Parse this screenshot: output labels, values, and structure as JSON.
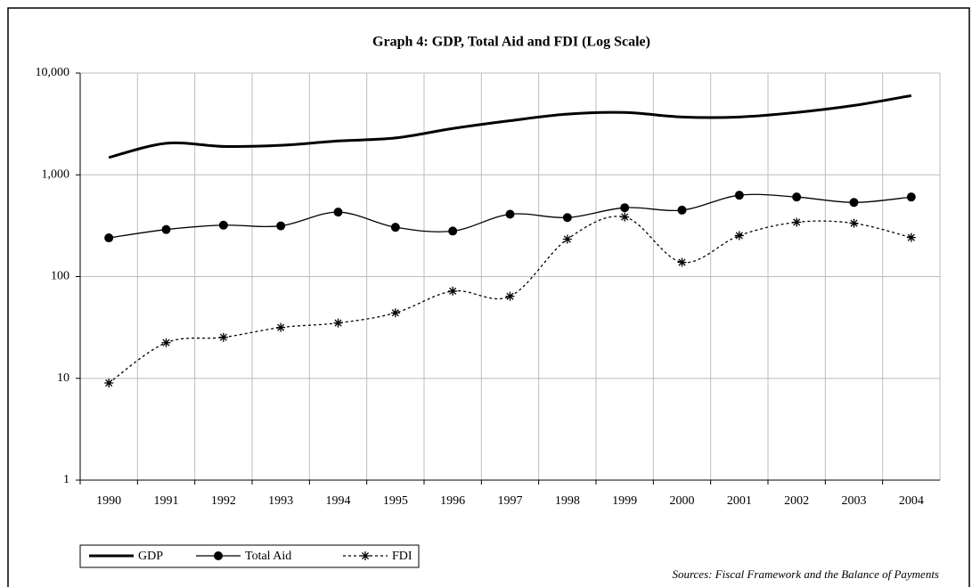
{
  "chart_data": {
    "type": "line",
    "title": "Graph 4: GDP, Total Aid and FDI (Log Scale)",
    "source": "Sources: Fiscal Framework and the Balance of Payments",
    "categories": [
      "1990",
      "1991",
      "1992",
      "1993",
      "1994",
      "1995",
      "1996",
      "1997",
      "1998",
      "1999",
      "2000",
      "2001",
      "2002",
      "2003",
      "2004"
    ],
    "yscale": "log",
    "ylim": [
      1,
      10000
    ],
    "yticks": [
      {
        "value": 10000,
        "label": "10,000"
      },
      {
        "value": 1000,
        "label": "1,000"
      },
      100,
      10,
      1
    ],
    "grid": true,
    "legend": "bottom-left",
    "series": [
      {
        "name": "GDP",
        "color": "#000000",
        "marker": "none",
        "dashed": false,
        "width": 3,
        "values": [
          1480,
          2040,
          1900,
          1950,
          2150,
          2300,
          2850,
          3400,
          3950,
          4100,
          3700,
          3700,
          4100,
          4800,
          6000
        ]
      },
      {
        "name": "Total Aid",
        "color": "#000000",
        "marker": "circle",
        "dashed": false,
        "width": 1.3,
        "values": [
          240,
          290,
          320,
          315,
          430,
          305,
          280,
          410,
          380,
          475,
          450,
          630,
          605,
          535,
          605
        ]
      },
      {
        "name": "FDI",
        "color": "#000000",
        "marker": "asterisk",
        "dashed": true,
        "width": 1.3,
        "values": [
          9,
          22.4,
          25.3,
          31.6,
          35,
          44,
          72,
          64,
          233,
          385,
          138,
          253,
          342,
          334,
          242
        ]
      }
    ]
  }
}
